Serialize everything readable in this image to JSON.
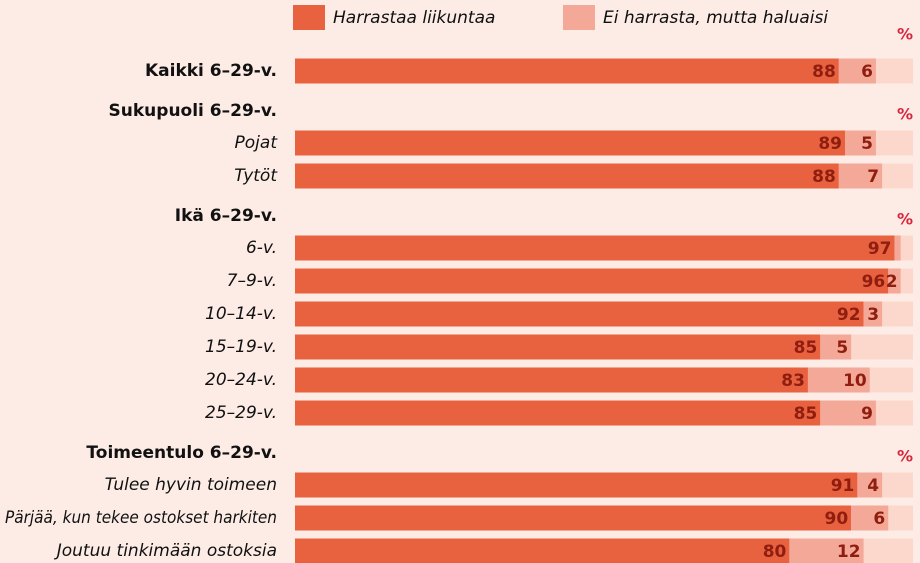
{
  "chart_data": {
    "type": "stacked-bar-horizontal",
    "series": [
      {
        "name": "Harrastaa liikuntaa",
        "color": "#e8623f"
      },
      {
        "name": "Ei harrasta, mutta haluaisi",
        "color": "#f4a898"
      }
    ],
    "xlim": [
      0,
      100
    ],
    "track_color": "#fbd7cc",
    "groups": [
      {
        "title": "Kaikki 6–29-v.",
        "unit": "%",
        "values": [
          [
            88
          ],
          [
            6
          ]
        ]
      },
      {
        "title": "Sukupuoli 6–29-v.",
        "unit": "%",
        "categories": [
          "Pojat",
          "Tytöt"
        ],
        "values": [
          [
            89,
            88
          ],
          [
            5,
            7
          ]
        ]
      },
      {
        "title": "Ikä 6–29-v.",
        "unit": "%",
        "categories": [
          "6-v.",
          "7–9-v.",
          "10–14-v.",
          "15–19-v.",
          "20–24-v.",
          "25–29-v."
        ],
        "values": [
          [
            97,
            96,
            92,
            85,
            83,
            85
          ],
          [
            1,
            2,
            3,
            5,
            10,
            9
          ]
        ],
        "value_labels": [
          [
            "97",
            "96",
            "92",
            "85",
            "83",
            "85"
          ],
          [
            null,
            "2",
            "3",
            "5",
            "10",
            "9"
          ]
        ]
      },
      {
        "title": "Toimeentulo 6–29-v.",
        "unit": "%",
        "categories": [
          "Tulee hyvin toimeen",
          "Pärjää, kun tekee ostokset harkiten",
          "Joutuu tinkimään ostoksia"
        ],
        "values": [
          [
            91,
            90,
            80
          ],
          [
            4,
            6,
            12
          ]
        ]
      }
    ]
  }
}
